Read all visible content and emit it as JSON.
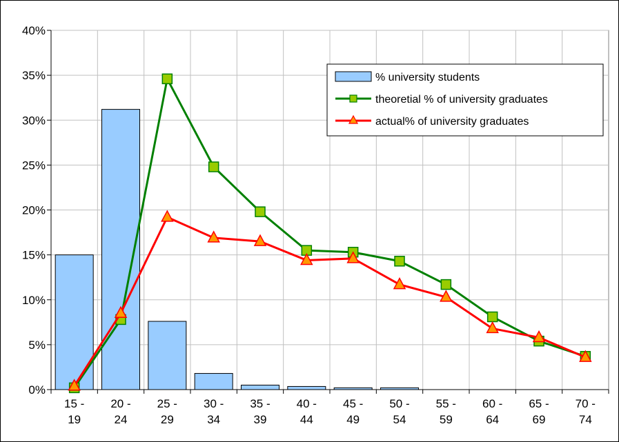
{
  "chart_data": {
    "type": "bar",
    "categories": [
      [
        "15 -",
        "19"
      ],
      [
        "20 -",
        "24"
      ],
      [
        "25 -",
        "29"
      ],
      [
        "30 -",
        "34"
      ],
      [
        "35 -",
        "39"
      ],
      [
        "40 -",
        "44"
      ],
      [
        "45 -",
        "49"
      ],
      [
        "50 -",
        "54"
      ],
      [
        "55 -",
        "59"
      ],
      [
        "60 -",
        "64"
      ],
      [
        "65 -",
        "69"
      ],
      [
        "70 -",
        "74"
      ]
    ],
    "series": [
      {
        "name": "% university students",
        "kind": "bar",
        "color": "#99ccff",
        "values": [
          15.0,
          31.2,
          7.6,
          1.8,
          0.5,
          0.35,
          0.2,
          0.2,
          0,
          0,
          0,
          0
        ]
      },
      {
        "name": "theoretial % of university graduates",
        "kind": "line",
        "marker": "square",
        "color": "#008000",
        "marker_color": "#99cc00",
        "values": [
          0.2,
          7.8,
          34.6,
          24.8,
          19.8,
          15.5,
          15.3,
          14.3,
          11.7,
          8.1,
          5.4,
          3.7
        ]
      },
      {
        "name": "actual% of university graduates",
        "kind": "line",
        "marker": "triangle",
        "color": "#ff0000",
        "marker_color": "#ff9900",
        "values": [
          0.4,
          8.5,
          19.2,
          16.9,
          16.5,
          14.4,
          14.6,
          11.7,
          10.3,
          6.8,
          5.8,
          3.6
        ]
      }
    ],
    "ytick_labels": [
      "0%",
      "5%",
      "10%",
      "15%",
      "20%",
      "25%",
      "30%",
      "35%",
      "40%"
    ],
    "ylim": [
      0,
      40
    ],
    "grid": true,
    "legend_position": "top-right",
    "title": "",
    "xlabel": "",
    "ylabel": ""
  }
}
